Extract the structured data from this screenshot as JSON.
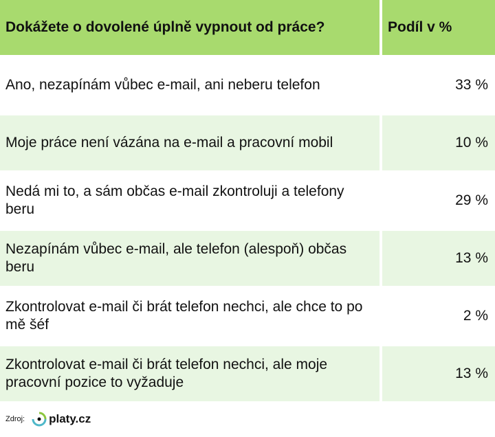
{
  "chart_data": {
    "type": "table",
    "columns": [
      "Dokážete o dovolené úplně vypnout od práce?",
      "Podíl v %"
    ],
    "rows": [
      {
        "answer": "Ano, nezapínám vůbec e-mail, ani neberu telefon",
        "value": 33,
        "label": "33 %"
      },
      {
        "answer": "Moje práce není vázána na e-mail a pracovní mobil",
        "value": 10,
        "label": "10 %"
      },
      {
        "answer": "Nedá mi to, a sám občas e-mail zkontroluji a telefony beru",
        "value": 29,
        "label": "29 %"
      },
      {
        "answer": "Nezapínám vůbec e-mail, ale telefon (alespoň) občas beru",
        "value": 13,
        "label": "13 %"
      },
      {
        "answer": "Zkontrolovat e-mail či brát telefon nechci, ale chce to po mě šéf",
        "value": 2,
        "label": "2 %"
      },
      {
        "answer": "Zkontrolovat e-mail či brát telefon nechci, ale moje pracovní pozice to vyžaduje",
        "value": 13,
        "label": "13 %"
      }
    ]
  },
  "footer": {
    "source_label": "Zdroj:",
    "logo": "platy.cz"
  },
  "colors": {
    "header": "#a8da6e",
    "alt_row": "#e8f6e2"
  }
}
